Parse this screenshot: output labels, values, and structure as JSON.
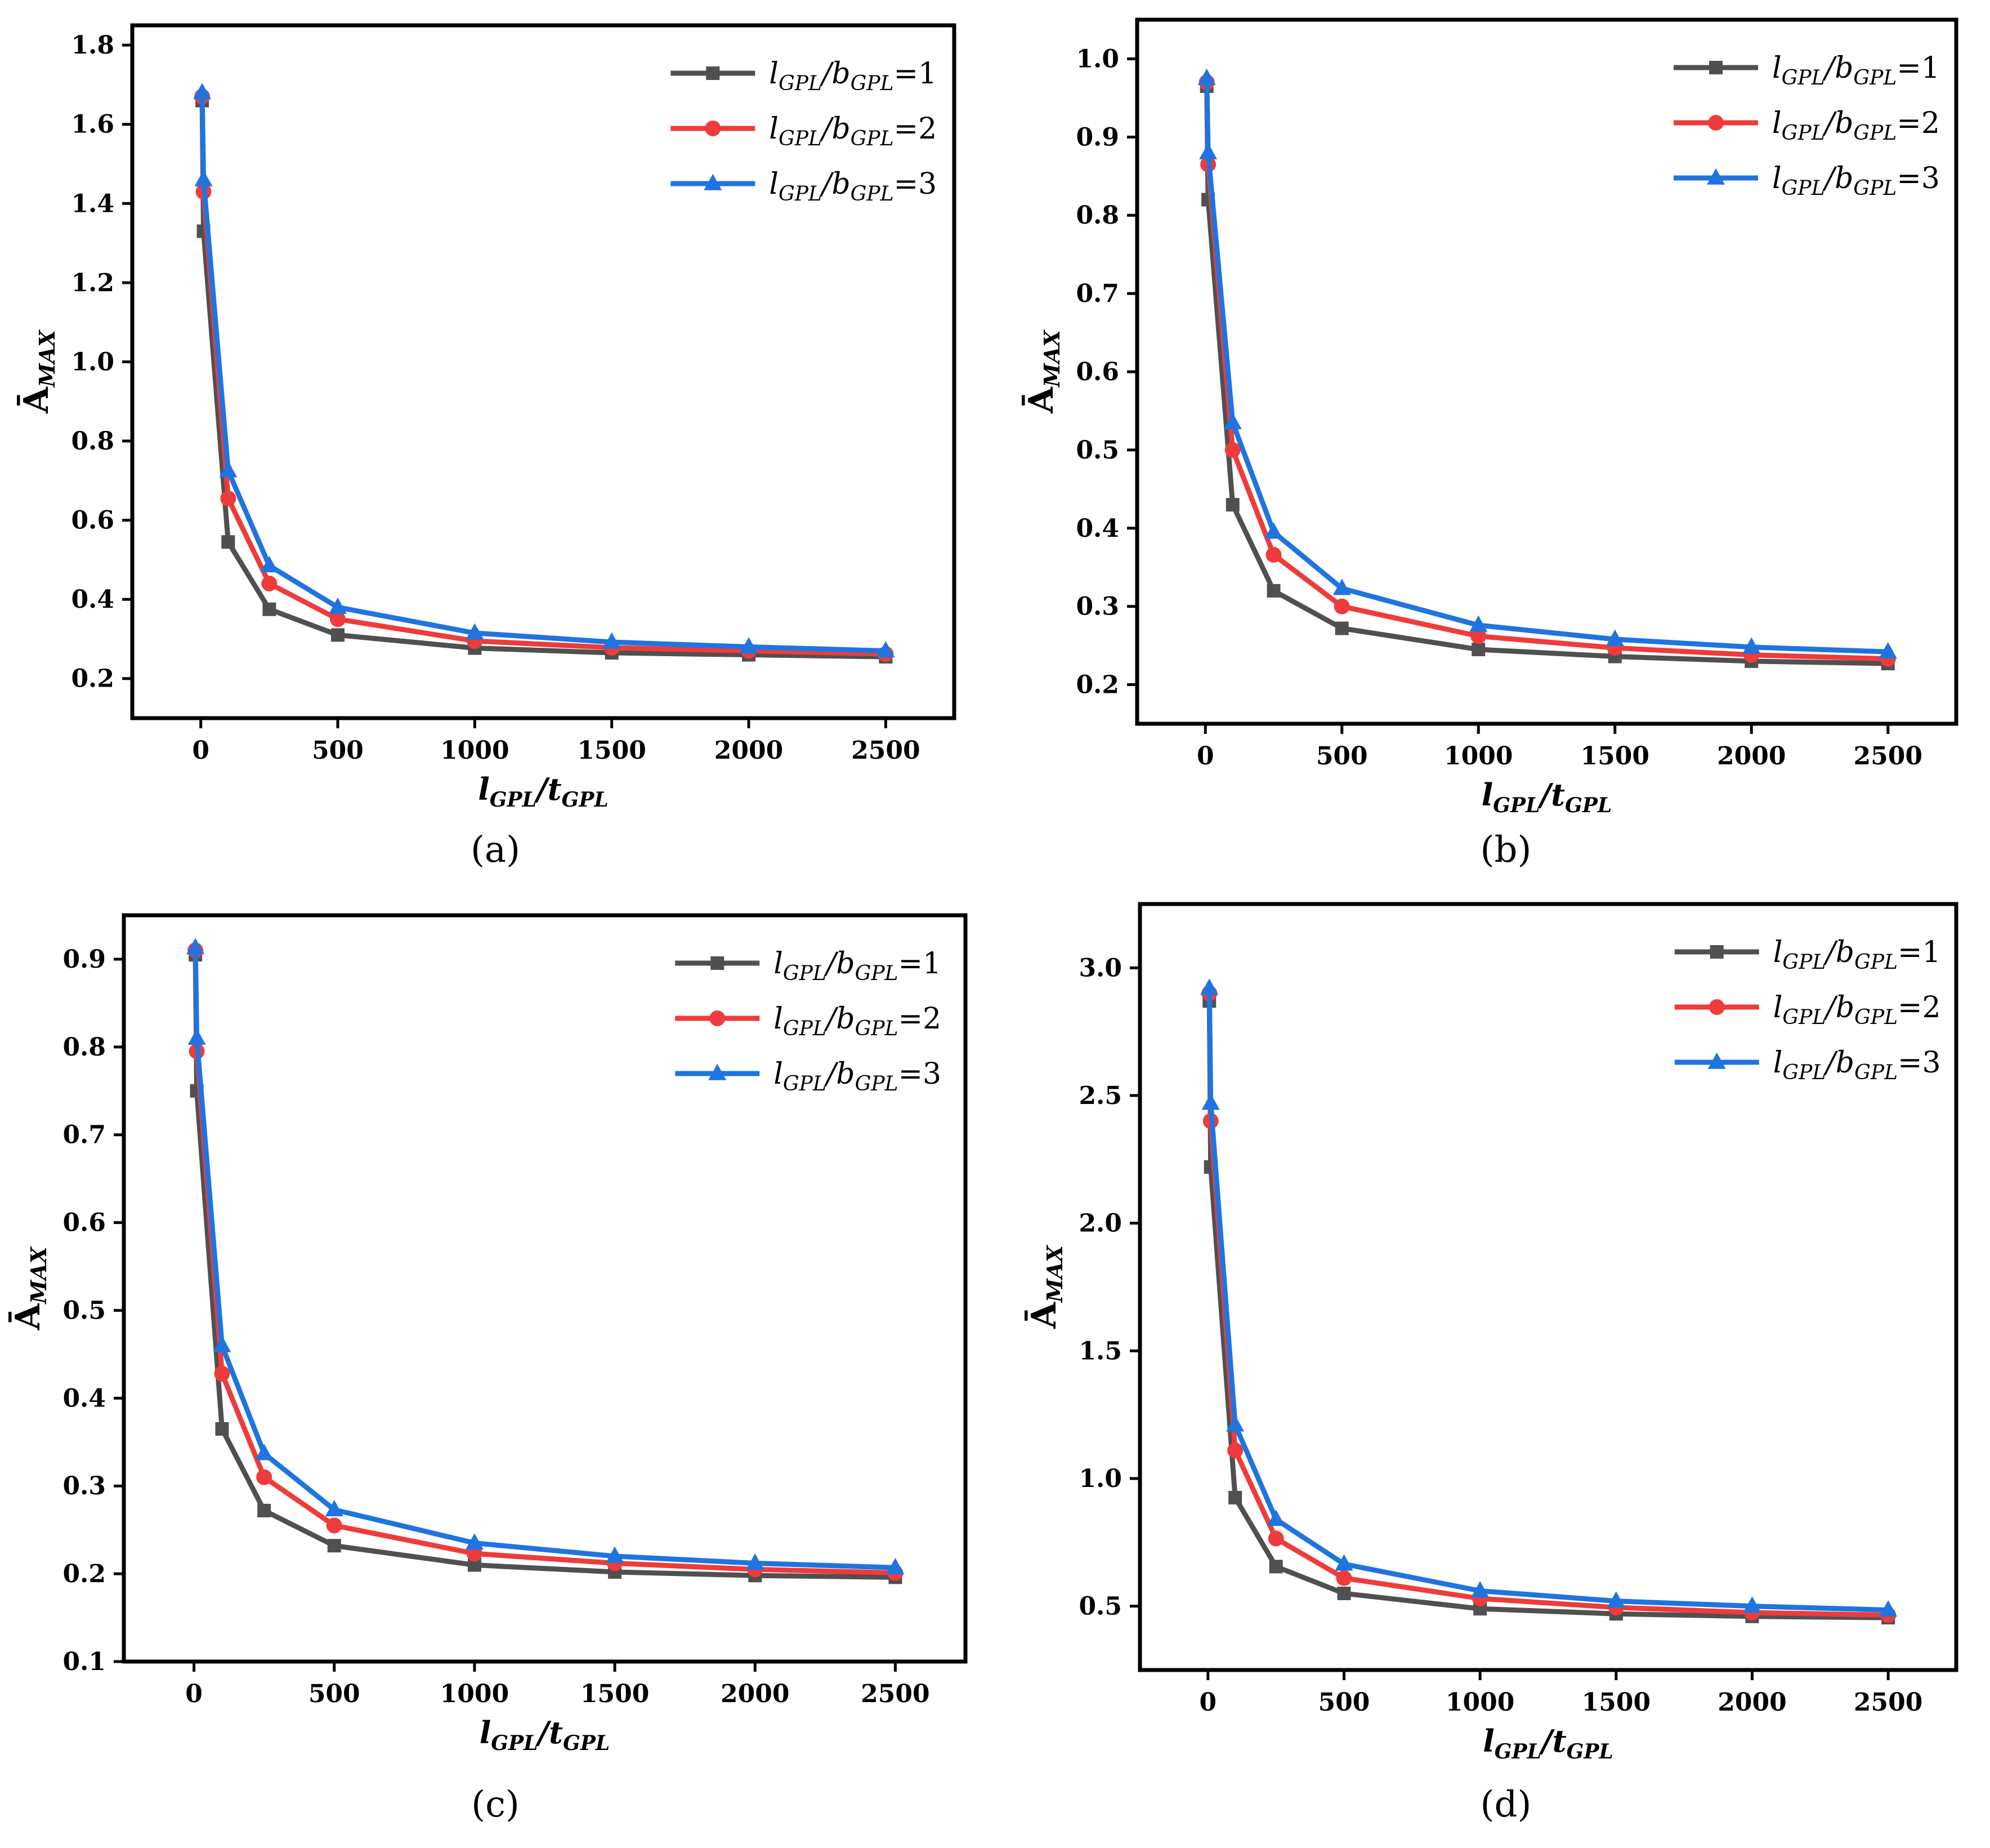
{
  "figure": {
    "series_colors": [
      "#505050",
      "#ef3b3b",
      "#1f74e0"
    ],
    "marker_shapes": [
      "square",
      "circle",
      "triangle"
    ]
  },
  "chart_data": [
    {
      "type": "line",
      "panel_label": "(a)",
      "x": [
        5,
        10,
        100,
        250,
        500,
        1000,
        1500,
        2000,
        2500
      ],
      "xticks": [
        0,
        500,
        1000,
        1500,
        2000,
        2500
      ],
      "xlim": [
        -250,
        2750
      ],
      "ylim": [
        0.1,
        1.85
      ],
      "yticks": [
        0.2,
        0.4,
        0.6,
        0.8,
        1.0,
        1.2,
        1.4,
        1.6,
        1.8
      ],
      "ytick_labels": [
        "0.2",
        "0.4",
        "0.6",
        "0.8",
        "1.0",
        "1.2",
        "1.4",
        "1.6",
        "1.8"
      ],
      "ylabel_base": "Ā",
      "ylabel_sub": "MAX",
      "xlabel_main": "l",
      "xlabel_sub1": "GPL",
      "xlabel_slash": "/t",
      "xlabel_sub2": "GPL",
      "series": [
        {
          "legend_main": "l",
          "legend_sub1": "GPL",
          "legend_mid": "/b",
          "legend_sub2": "GPL",
          "legend_val": "=1",
          "values": [
            1.66,
            1.33,
            0.545,
            0.375,
            0.31,
            0.277,
            0.265,
            0.26,
            0.255
          ]
        },
        {
          "legend_main": "l",
          "legend_sub1": "GPL",
          "legend_mid": "/b",
          "legend_sub2": "GPL",
          "legend_val": "=2",
          "values": [
            1.67,
            1.43,
            0.655,
            0.44,
            0.35,
            0.295,
            0.278,
            0.27,
            0.262
          ]
        },
        {
          "legend_main": "l",
          "legend_sub1": "GPL",
          "legend_mid": "/b",
          "legend_sub2": "GPL",
          "legend_val": "=3",
          "values": [
            1.68,
            1.46,
            0.725,
            0.485,
            0.38,
            0.315,
            0.292,
            0.28,
            0.27
          ]
        }
      ]
    },
    {
      "type": "line",
      "panel_label": "(b)",
      "x": [
        5,
        10,
        100,
        250,
        500,
        1000,
        1500,
        2000,
        2500
      ],
      "xticks": [
        0,
        500,
        1000,
        1500,
        2000,
        2500
      ],
      "xlim": [
        -250,
        2750
      ],
      "ylim": [
        0.15,
        1.05
      ],
      "yticks": [
        0.2,
        0.3,
        0.4,
        0.5,
        0.6,
        0.7,
        0.8,
        0.9,
        1.0
      ],
      "ytick_labels": [
        "0.2",
        "0.3",
        "0.4",
        "0.5",
        "0.6",
        "0.7",
        "0.8",
        "0.9",
        "1.0"
      ],
      "ylabel_base": "Ā",
      "ylabel_sub": "MAX",
      "xlabel_main": "l",
      "xlabel_sub1": "GPL",
      "xlabel_slash": "/t",
      "xlabel_sub2": "GPL",
      "series": [
        {
          "legend_main": "l",
          "legend_sub1": "GPL",
          "legend_mid": "/b",
          "legend_sub2": "GPL",
          "legend_val": "=1",
          "values": [
            0.965,
            0.82,
            0.43,
            0.32,
            0.272,
            0.245,
            0.236,
            0.23,
            0.227
          ]
        },
        {
          "legend_main": "l",
          "legend_sub1": "GPL",
          "legend_mid": "/b",
          "legend_sub2": "GPL",
          "legend_val": "=2",
          "values": [
            0.97,
            0.865,
            0.5,
            0.366,
            0.3,
            0.262,
            0.247,
            0.238,
            0.233
          ]
        },
        {
          "legend_main": "l",
          "legend_sub1": "GPL",
          "legend_mid": "/b",
          "legend_sub2": "GPL",
          "legend_val": "=3",
          "values": [
            0.975,
            0.88,
            0.535,
            0.395,
            0.323,
            0.276,
            0.258,
            0.248,
            0.242
          ]
        }
      ]
    },
    {
      "type": "line",
      "panel_label": "(c)",
      "x": [
        5,
        10,
        100,
        250,
        500,
        1000,
        1500,
        2000,
        2500
      ],
      "xticks": [
        0,
        500,
        1000,
        1500,
        2000,
        2500
      ],
      "xlim": [
        -250,
        2750
      ],
      "ylim": [
        0.1,
        0.95
      ],
      "yticks": [
        0.1,
        0.2,
        0.3,
        0.4,
        0.5,
        0.6,
        0.7,
        0.8,
        0.9
      ],
      "ytick_labels": [
        "0.1",
        "0.2",
        "0.3",
        "0.4",
        "0.5",
        "0.6",
        "0.7",
        "0.8",
        "0.9"
      ],
      "ylabel_base": "Ā",
      "ylabel_sub": "MAX",
      "xlabel_main": "l",
      "xlabel_sub1": "GPL",
      "xlabel_slash": "/t",
      "xlabel_sub2": "GPL",
      "series": [
        {
          "legend_main": "l",
          "legend_sub1": "GPL",
          "legend_mid": "/b",
          "legend_sub2": "GPL",
          "legend_val": "=1",
          "values": [
            0.905,
            0.75,
            0.365,
            0.272,
            0.232,
            0.21,
            0.202,
            0.198,
            0.196
          ]
        },
        {
          "legend_main": "l",
          "legend_sub1": "GPL",
          "legend_mid": "/b",
          "legend_sub2": "GPL",
          "legend_val": "=2",
          "values": [
            0.91,
            0.795,
            0.428,
            0.31,
            0.255,
            0.223,
            0.212,
            0.205,
            0.201
          ]
        },
        {
          "legend_main": "l",
          "legend_sub1": "GPL",
          "legend_mid": "/b",
          "legend_sub2": "GPL",
          "legend_val": "=3",
          "values": [
            0.913,
            0.81,
            0.46,
            0.337,
            0.273,
            0.235,
            0.22,
            0.212,
            0.207
          ]
        }
      ]
    },
    {
      "type": "line",
      "panel_label": "(d)",
      "x": [
        5,
        10,
        100,
        250,
        500,
        1000,
        1500,
        2000,
        2500
      ],
      "xticks": [
        0,
        500,
        1000,
        1500,
        2000,
        2500
      ],
      "xlim": [
        -250,
        2750
      ],
      "ylim": [
        0.25,
        3.25
      ],
      "yticks": [
        0.5,
        1.0,
        1.5,
        2.0,
        2.5,
        3.0
      ],
      "ytick_labels": [
        "0.5",
        "1.0",
        "1.5",
        "2.0",
        "2.5",
        "3.0"
      ],
      "ylabel_base": "Ā",
      "ylabel_sub": "MAX",
      "xlabel_main": "l",
      "xlabel_sub1": "GPL",
      "xlabel_slash": "/t",
      "xlabel_sub2": "GPL",
      "series": [
        {
          "legend_main": "l",
          "legend_sub1": "GPL",
          "legend_mid": "/b",
          "legend_sub2": "GPL",
          "legend_val": "=1",
          "values": [
            2.87,
            2.22,
            0.925,
            0.655,
            0.55,
            0.49,
            0.47,
            0.46,
            0.455
          ]
        },
        {
          "legend_main": "l",
          "legend_sub1": "GPL",
          "legend_mid": "/b",
          "legend_sub2": "GPL",
          "legend_val": "=2",
          "values": [
            2.9,
            2.4,
            1.11,
            0.765,
            0.61,
            0.53,
            0.495,
            0.475,
            0.465
          ]
        },
        {
          "legend_main": "l",
          "legend_sub1": "GPL",
          "legend_mid": "/b",
          "legend_sub2": "GPL",
          "legend_val": "=3",
          "values": [
            2.92,
            2.47,
            1.21,
            0.84,
            0.665,
            0.56,
            0.52,
            0.5,
            0.485
          ]
        }
      ]
    }
  ]
}
